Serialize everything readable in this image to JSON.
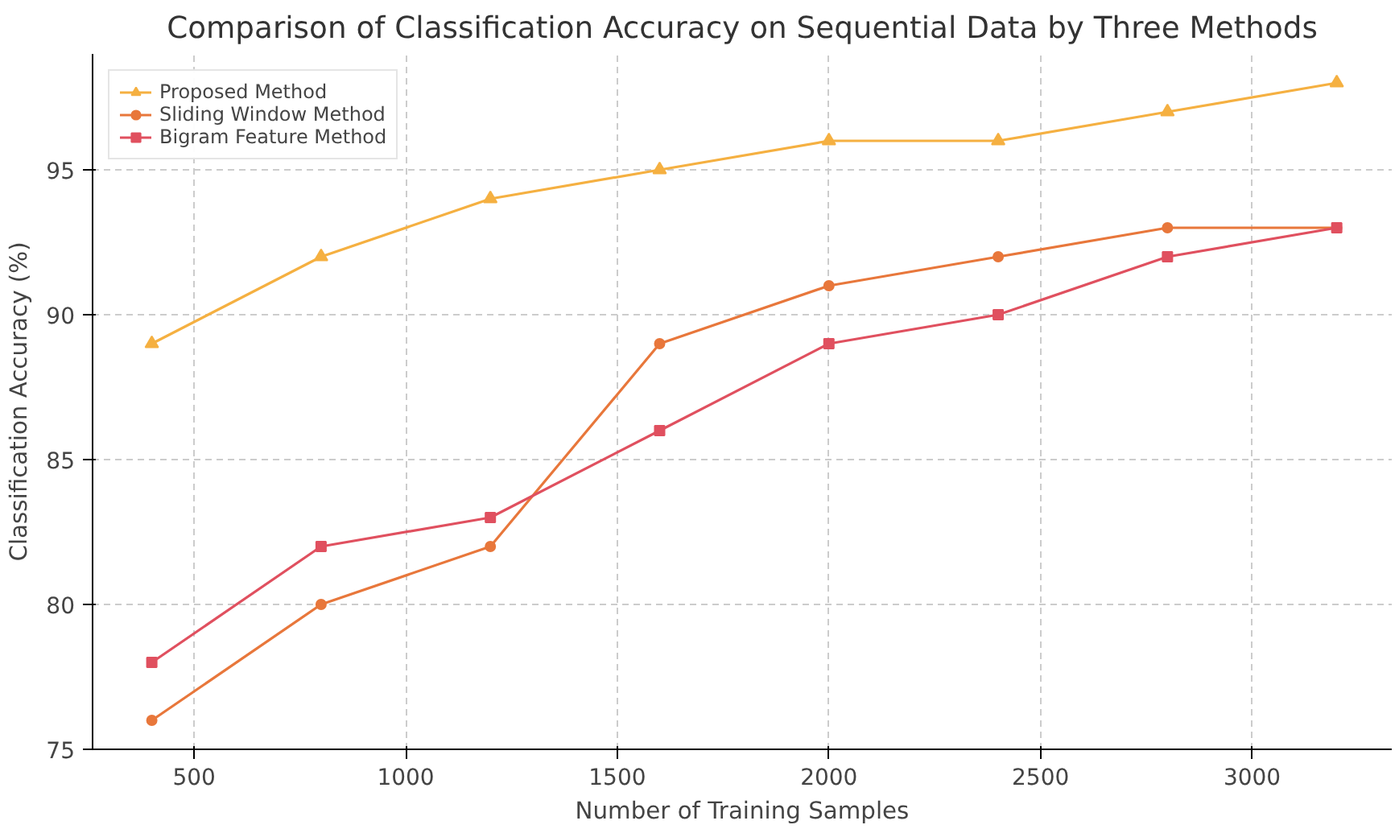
{
  "chart_data": {
    "type": "line",
    "title": "Comparison of Classification Accuracy on Sequential Data by Three Methods",
    "xlabel": "Number of Training Samples",
    "ylabel": "Classification Accuracy (%)",
    "x": [
      400,
      800,
      1200,
      1600,
      2000,
      2400,
      2800,
      3200
    ],
    "series": [
      {
        "name": "Proposed Method",
        "color": "#f5b041",
        "marker": "triangle",
        "values": [
          89,
          92,
          94,
          95,
          96,
          96,
          97,
          98
        ]
      },
      {
        "name": "Sliding Window Method",
        "color": "#e8773b",
        "marker": "circle",
        "values": [
          76,
          80,
          82,
          89,
          91,
          92,
          93,
          93
        ]
      },
      {
        "name": "Bigram Feature Method",
        "color": "#e0505f",
        "marker": "square",
        "values": [
          78,
          82,
          83,
          86,
          89,
          90,
          92,
          93
        ]
      }
    ],
    "xlim": [
      260,
      3330
    ],
    "ylim": [
      75,
      99
    ],
    "xticks": [
      500,
      1000,
      1500,
      2000,
      2500,
      3000
    ],
    "yticks": [
      75,
      80,
      85,
      90,
      95
    ],
    "grid": true,
    "legend": "top left"
  }
}
